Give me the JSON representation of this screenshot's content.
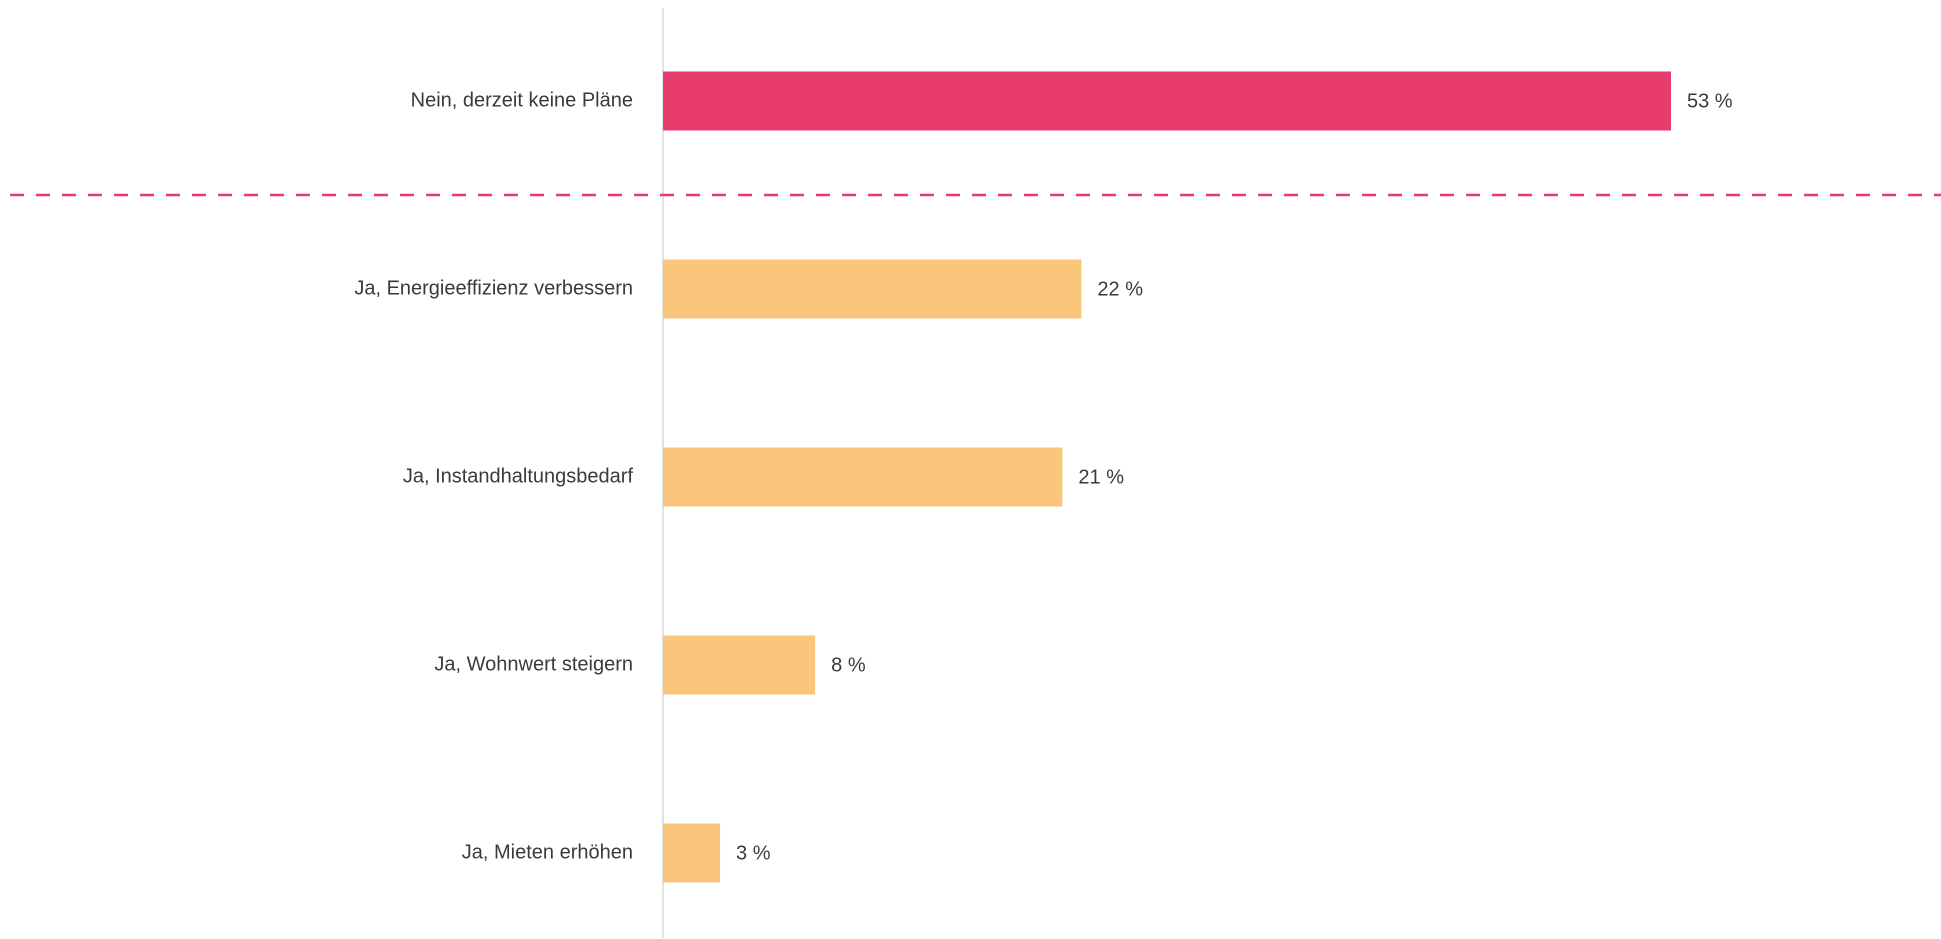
{
  "chart_data": {
    "type": "bar",
    "orientation": "horizontal",
    "categories": [
      "Nein, derzeit keine Pläne",
      "Ja, Energieeffizienz verbessern",
      "Ja, Instandhaltungsbedarf",
      "Ja, Wohnwert steigern",
      "Ja, Mieten erhöhen"
    ],
    "values": [
      53,
      22,
      21,
      8,
      3
    ],
    "value_labels": [
      "53 %",
      "22 %",
      "21 %",
      "8 %",
      "3 %"
    ],
    "unit": "%",
    "xlim": [
      0,
      67
    ],
    "colors": {
      "highlight": "#E83B6E",
      "default": "#FAC67B",
      "divider": "#E83B6E",
      "axis": "#D9D9D9",
      "text": "#3A3A3A"
    },
    "highlight_index": 0,
    "divider": {
      "style": "dashed",
      "after_index": 0
    },
    "grid": false,
    "legend": "none"
  }
}
